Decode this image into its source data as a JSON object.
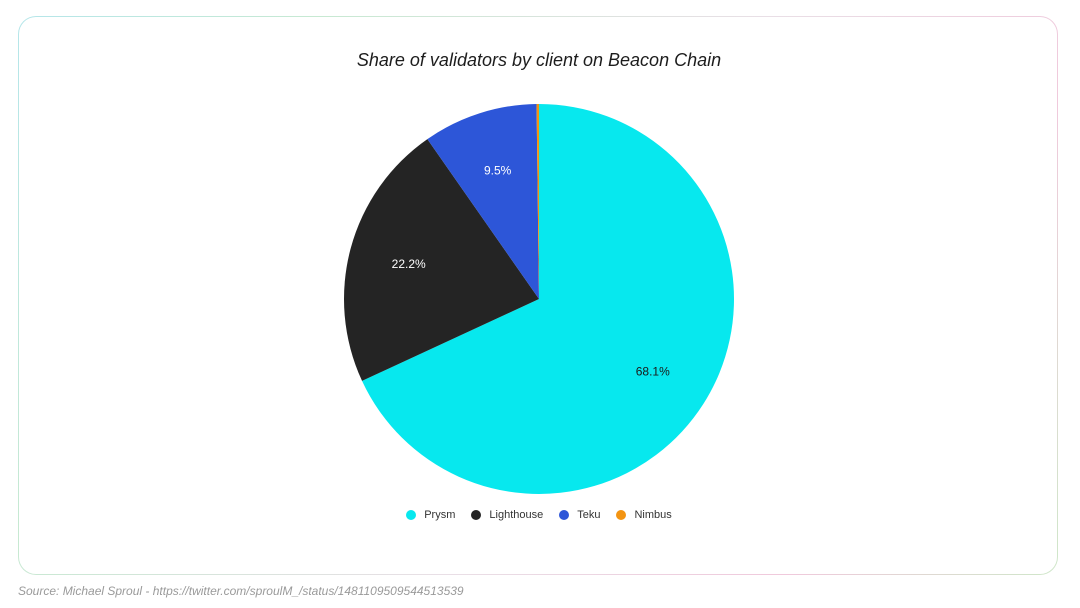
{
  "title": "Share of validators by client on Beacon Chain",
  "source": "Source: Michael Sproul - https://twitter.com/sproulM_/status/1481109509544513539",
  "chart_data": {
    "type": "pie",
    "title": "Share of validators by client on Beacon Chain",
    "categories": [
      "Prysm",
      "Lighthouse",
      "Teku",
      "Nimbus"
    ],
    "values": [
      68.1,
      22.2,
      9.5,
      0.2
    ],
    "labels": [
      "68.1%",
      "22.2%",
      "9.5%",
      ""
    ],
    "colors": [
      "#07e8ee",
      "#242424",
      "#2d56d8",
      "#f39412"
    ],
    "label_colors": [
      "#1a1a1a",
      "#ffffff",
      "#ffffff",
      "#ffffff"
    ],
    "legend_position": "bottom",
    "start_angle_deg": 0,
    "direction": "clockwise"
  }
}
